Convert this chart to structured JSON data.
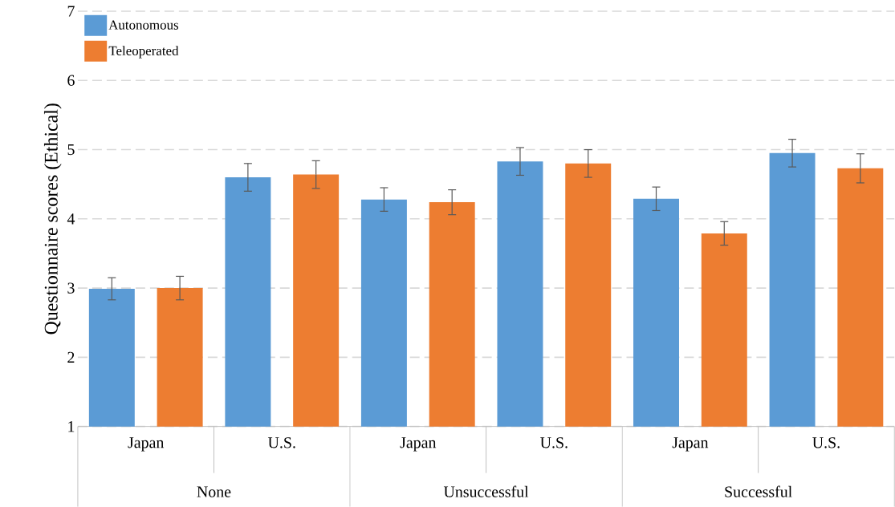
{
  "chart_data": {
    "type": "bar",
    "ylabel": "Questionnaire scores (Ethical)",
    "categories": [
      "Japan",
      "U.S.",
      "Japan",
      "U.S.",
      "Japan",
      "U.S."
    ],
    "annotations": [
      "None",
      "Unsuccessful",
      "Successful"
    ],
    "series": [
      {
        "name": "Autonomous",
        "color": "#5b9bd5",
        "values": [
          2.99,
          4.6,
          4.28,
          4.83,
          4.29,
          4.95
        ],
        "errors": [
          0.16,
          0.2,
          0.17,
          0.2,
          0.17,
          0.2
        ]
      },
      {
        "name": "Teleoperated",
        "color": "#ed7d31",
        "values": [
          3.0,
          4.64,
          4.24,
          4.8,
          3.79,
          4.73
        ],
        "errors": [
          0.17,
          0.2,
          0.18,
          0.2,
          0.17,
          0.21
        ]
      }
    ],
    "ylim": [
      1,
      7
    ],
    "yticks": [
      1,
      2,
      3,
      4,
      5,
      6,
      7
    ],
    "grid": "y",
    "legend": "top left"
  }
}
